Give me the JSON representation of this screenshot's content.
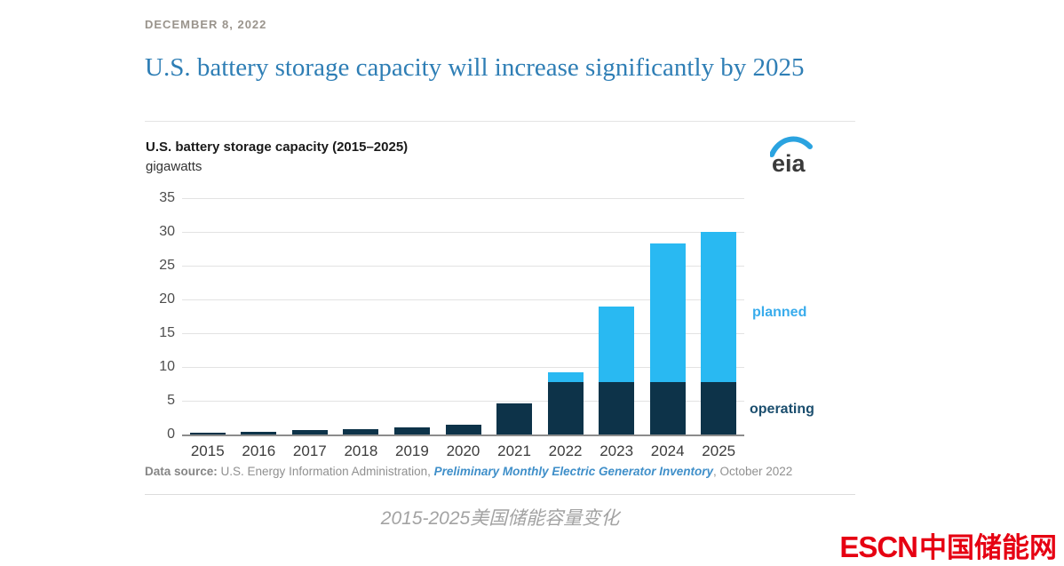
{
  "page": {
    "date": "DECEMBER 8, 2022",
    "headline": "U.S. battery storage capacity will increase significantly by 2025",
    "caption": "2015-2025美国储能容量变化",
    "brand": {
      "latin": "ESCN",
      "chinese": "中国储能网",
      "color": "#e60012"
    }
  },
  "chart_data": {
    "type": "bar",
    "stacked": true,
    "title": "U.S. battery storage capacity (2015–2025)",
    "unit_label": "gigawatts",
    "logo": "eia",
    "categories": [
      "2015",
      "2016",
      "2017",
      "2018",
      "2019",
      "2020",
      "2021",
      "2022",
      "2023",
      "2024",
      "2025"
    ],
    "series": [
      {
        "name": "operating",
        "color": "#0d3349",
        "values": [
          0.2,
          0.4,
          0.6,
          0.8,
          1.0,
          1.5,
          4.6,
          7.8,
          7.8,
          7.8,
          7.8
        ]
      },
      {
        "name": "planned",
        "color": "#29b9f2",
        "values": [
          0,
          0,
          0,
          0,
          0,
          0,
          0,
          1.4,
          11.2,
          20.5,
          22.2
        ]
      }
    ],
    "totals": [
      0.2,
      0.4,
      0.6,
      0.8,
      1.0,
      1.5,
      4.6,
      9.2,
      19.0,
      28.3,
      30.0
    ],
    "ylim": [
      0,
      35
    ],
    "yticks": [
      0,
      5,
      10,
      15,
      20,
      25,
      30,
      35
    ],
    "grid": true,
    "legend_position": "right-of-bars",
    "legend": {
      "planned": {
        "label": "planned",
        "color": "#39acec"
      },
      "operating": {
        "label": "operating",
        "color": "#1b4e6e"
      }
    },
    "source": {
      "prefix": "Data source:",
      "text": " U.S. Energy Information Administration, ",
      "link": "Preliminary Monthly Electric Generator Inventory",
      "suffix": ", October 2022"
    }
  }
}
